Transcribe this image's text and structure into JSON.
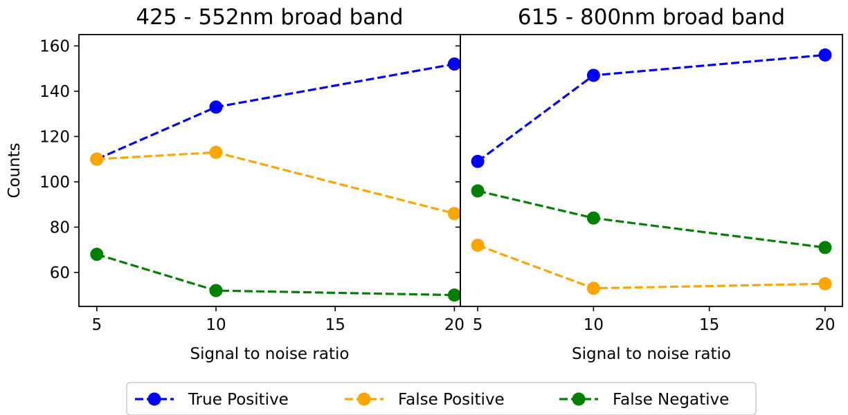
{
  "chart_data": [
    {
      "type": "line",
      "title": "425 - 552nm broad band",
      "xlabel": "Signal to noise ratio",
      "ylabel": "Counts",
      "x": [
        5,
        10,
        20
      ],
      "xlim": [
        4.25,
        20.25
      ],
      "ylim": [
        45,
        165
      ],
      "xticks": [
        5,
        10,
        15,
        20
      ],
      "yticks": [
        60,
        80,
        100,
        120,
        140,
        160
      ],
      "series": [
        {
          "name": "True Positive",
          "color": "#0000ff",
          "values": [
            110,
            133,
            152
          ]
        },
        {
          "name": "False Positive",
          "color": "#ffa500",
          "values": [
            110,
            113,
            86
          ]
        },
        {
          "name": "False Negative",
          "color": "#008000",
          "values": [
            68,
            52,
            50
          ]
        }
      ]
    },
    {
      "type": "line",
      "title": "615 - 800nm broad band",
      "xlabel": "Signal to noise ratio",
      "ylabel": "",
      "x": [
        5,
        10,
        20
      ],
      "xlim": [
        4.25,
        20.75
      ],
      "ylim": [
        45,
        165
      ],
      "xticks": [
        5,
        10,
        15,
        20
      ],
      "yticks": [],
      "series": [
        {
          "name": "True Positive",
          "color": "#0000ff",
          "values": [
            109,
            147,
            156
          ]
        },
        {
          "name": "False Positive",
          "color": "#ffa500",
          "values": [
            72,
            53,
            55
          ]
        },
        {
          "name": "False Negative",
          "color": "#008000",
          "values": [
            96,
            84,
            71
          ]
        }
      ]
    }
  ],
  "legend": {
    "placement": "bottom-center",
    "items": [
      {
        "label": "True Positive",
        "color": "#0000ff"
      },
      {
        "label": "False Positive",
        "color": "#ffa500"
      },
      {
        "label": "False Negative",
        "color": "#008000"
      }
    ]
  }
}
